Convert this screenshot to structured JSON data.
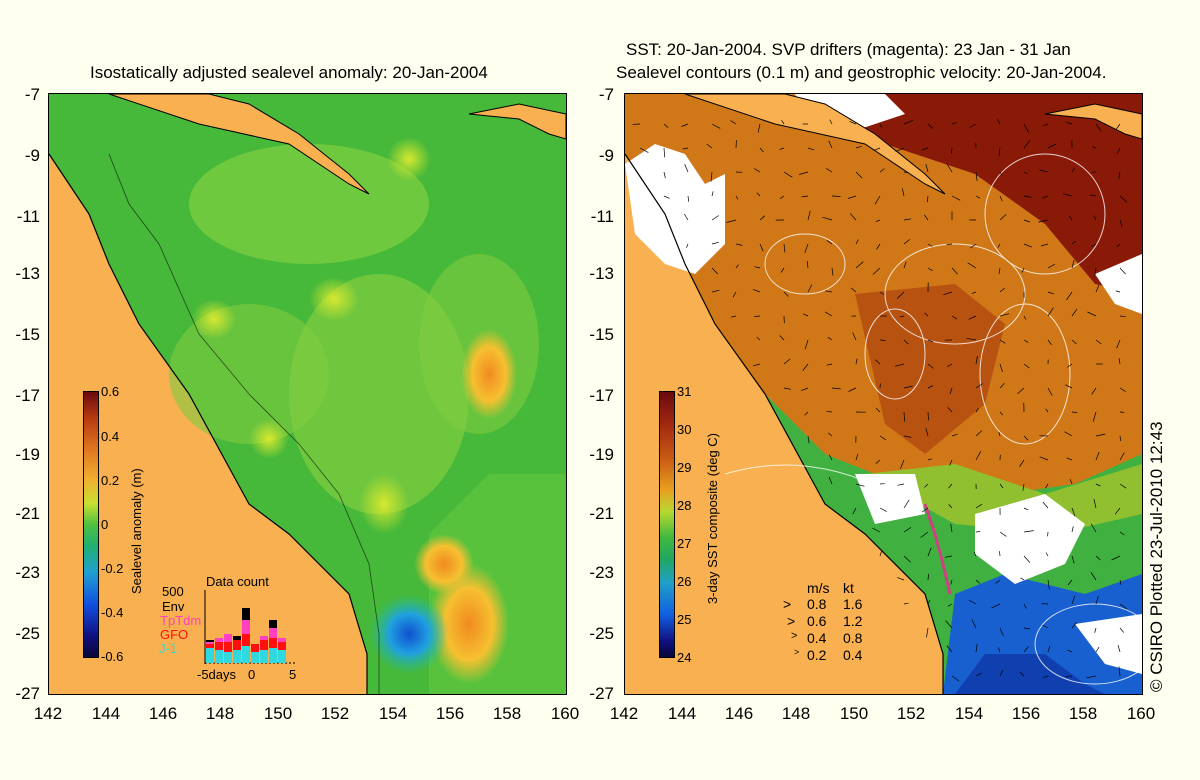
{
  "left_panel": {
    "title": "Isostatically adjusted sealevel anomaly: 20-Jan-2004",
    "colorbar": {
      "title": "Sealevel anomaly (m)",
      "labels": [
        "0.6",
        "0.4",
        "0.2",
        "0",
        "-0.2",
        "-0.4",
        "-0.6"
      ]
    },
    "data_count": {
      "title": "Data count",
      "max_label": "500",
      "satellites": [
        "Env",
        "TpTdm",
        "GFO",
        "J-1"
      ],
      "axis_labels": [
        "-5days",
        "0",
        "5"
      ]
    }
  },
  "right_panel": {
    "title_line1": "SST: 20-Jan-2004. SVP drifters (magenta): 23 Jan - 31 Jan",
    "title_line2": "Sealevel contours (0.1 m) and geostrophic velocity: 20-Jan-2004.",
    "colorbar": {
      "title": "3-day SST composite (deg C)",
      "labels": [
        "31",
        "30",
        "29",
        "28",
        "27",
        "26",
        "25",
        "24"
      ]
    },
    "velocity_legend": {
      "header_ms": "m/s",
      "header_kt": "kt",
      "rows": [
        {
          "ms": "0.8",
          "kt": "1.6"
        },
        {
          "ms": "0.6",
          "kt": "1.2"
        },
        {
          "ms": "0.4",
          "kt": "0.8"
        },
        {
          "ms": "0.2",
          "kt": "0.4"
        }
      ]
    }
  },
  "axes": {
    "lat_labels": [
      "-7",
      "-9",
      "-11",
      "-13",
      "-15",
      "-17",
      "-19",
      "-21",
      "-23",
      "-25",
      "-27"
    ],
    "lon_labels": [
      "142",
      "144",
      "146",
      "148",
      "150",
      "152",
      "154",
      "156",
      "158",
      "160"
    ]
  },
  "credit": "© CSIRO Plotted 23-Jul-2010 12:43",
  "colors": {
    "land": "#f8b050",
    "background": "#fffff0",
    "drifter": "#d04080"
  }
}
